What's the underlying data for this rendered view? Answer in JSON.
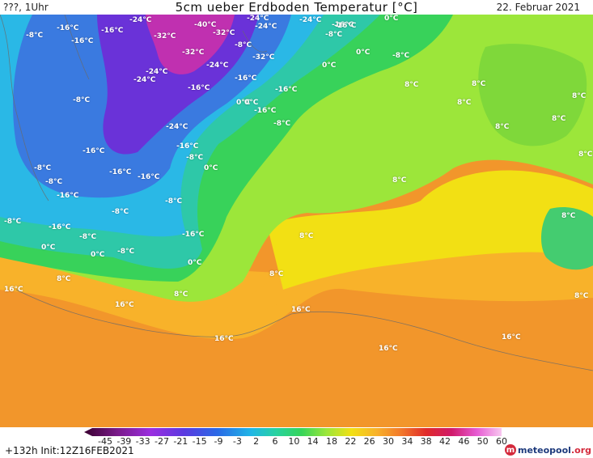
{
  "header": {
    "left": "???, 1Uhr",
    "title": "5cm ueber Erdboden Temperatur [°C]",
    "date": "22. Februar 2021"
  },
  "footer": {
    "run": "+132h  Init:12Z16FEB2021",
    "logo_text": "meteopool",
    "logo_tld": ".org"
  },
  "colors": {
    "ocean_warm": "#f2962b",
    "ocean_orange": "#f8b22a",
    "band_yellow": "#f2e014",
    "band_lime": "#9ce63a",
    "band_green": "#38d25a",
    "band_teal": "#2ec8a8",
    "band_cyan": "#2ab8e6",
    "band_blue": "#3a7ae0",
    "band_purple": "#6a32d8",
    "band_magenta": "#c030b0"
  },
  "legend": {
    "ticks": [
      "-45",
      "-39",
      "-33",
      "-27",
      "-21",
      "-15",
      "-9",
      "-3",
      "2",
      "6",
      "10",
      "14",
      "18",
      "22",
      "26",
      "30",
      "34",
      "38",
      "42",
      "46",
      "50",
      "60"
    ]
  },
  "labels": [
    "-24°C",
    "-16°C",
    "-24°C",
    "0°C",
    "-16°C",
    "-16°C",
    "-8°C",
    "-32°C",
    "-24°C",
    "-40°C",
    "-32°C",
    "-8°C",
    "-24°C",
    "-16°C",
    "-16°C",
    "0°C",
    "0°C",
    "-8°C",
    "-32°C",
    "-32°C",
    "0°C",
    "-24°C",
    "-24°C",
    "-24°C",
    "-16°C",
    "-8°C",
    "-16°C",
    "8°C",
    "8°C",
    "8°C",
    "0°C",
    "-8°C",
    "8°C",
    "-8°C",
    "-24°C",
    "8°C",
    "-16°C",
    "-16°C",
    "-16°C",
    "0°C",
    "-16°C",
    "8°C",
    "-8°C",
    "8°C",
    "-8°C",
    "-16°C",
    "-16°C",
    "-8°C",
    "8°C",
    "-16°C",
    "-8°C",
    "-8°C",
    "8°C",
    "-8°C",
    "0°C",
    "-8°C",
    "-8°C",
    "0°C",
    "0°C",
    "8°C",
    "8°C",
    "16°C",
    "8°C",
    "16°C",
    "16°C",
    "16°C",
    "16°C",
    "16°C",
    "8°C",
    "8°C",
    "-16°C",
    "-16°C"
  ]
}
